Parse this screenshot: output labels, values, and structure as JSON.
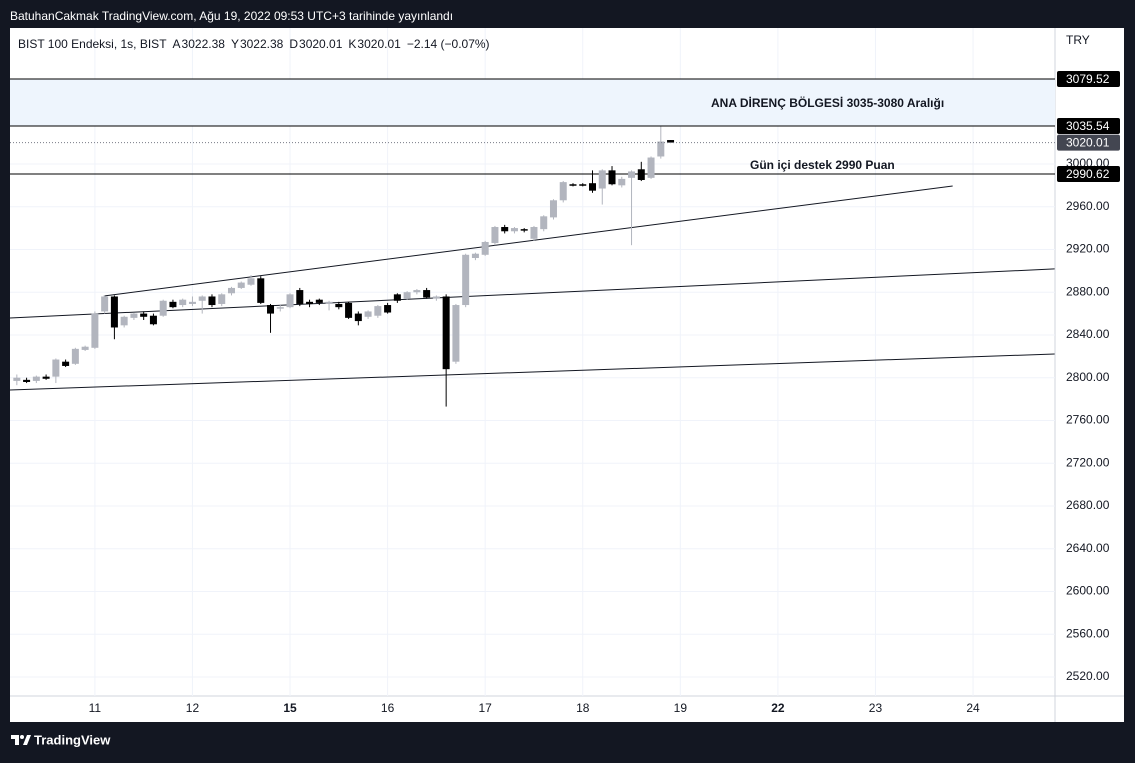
{
  "header": {
    "title": "BatuhanCakmak TradingView.com, Ağu 19, 2022 09:53 UTC+3 tarihinde yayınlandı"
  },
  "footer": {
    "brand": "TradingView"
  },
  "chart_data": {
    "type": "candlestick",
    "symbol": "BIST 100 Endeksi, 1s, BIST",
    "legend_keys": [
      "A",
      "Y",
      "D",
      "K"
    ],
    "change": "−2.14 (−0.07%)",
    "currency": "TRY",
    "up_color": "#b2b5be",
    "down_color": "#000000",
    "grid": true,
    "x": [
      -0.8,
      -0.7,
      -0.6,
      -0.5,
      -0.4,
      -0.3,
      -0.2,
      -0.1,
      0.0,
      0.1,
      0.2,
      0.3,
      0.4,
      0.5,
      0.6,
      0.7,
      0.8,
      0.9,
      1.0,
      1.1,
      1.2,
      1.3,
      1.4,
      1.5,
      1.6,
      1.7,
      1.8,
      1.9,
      2.0,
      2.1,
      2.2,
      2.3,
      2.4,
      2.5,
      2.6,
      2.7,
      2.8,
      2.9,
      3.0,
      3.1,
      3.2,
      3.3,
      3.4,
      3.5,
      3.6,
      3.7,
      3.8,
      3.9,
      4.0,
      4.1,
      4.2,
      4.3,
      4.4,
      4.5,
      4.6,
      4.7,
      4.8,
      4.9,
      5.0,
      5.1,
      5.2,
      5.3,
      5.4,
      5.5,
      5.6,
      5.7,
      5.8,
      5.9
    ],
    "open": [
      2797,
      2798,
      2797,
      2801,
      2801,
      2815,
      2813,
      2826,
      2828,
      2862,
      2876,
      2849,
      2856,
      2860,
      2858,
      2858,
      2871,
      2868,
      2869,
      2872,
      2876,
      2869,
      2879,
      2884,
      2887,
      2893,
      2868,
      2865,
      2866,
      2882,
      2871,
      2873,
      2869,
      2869,
      2870,
      2860,
      2857,
      2858,
      2868,
      2878,
      2874,
      2880,
      2882,
      2874,
      2876,
      2815,
      2868,
      2912,
      2915,
      2926,
      2941,
      2937,
      2939,
      2930,
      2939,
      2950,
      2966,
      2981,
      2981,
      2982,
      2977,
      2994,
      2980,
      2987,
      2995,
      2987,
      3007,
      3022.38
    ],
    "high": [
      2803,
      2800,
      2802,
      2803,
      2818,
      2817,
      2828,
      2830,
      2862,
      2877,
      2877,
      2858,
      2861,
      2862,
      2860,
      2873,
      2873,
      2874,
      2876,
      2877,
      2878,
      2879,
      2885,
      2890,
      2896,
      2895,
      2869,
      2868,
      2879,
      2884,
      2873,
      2874,
      2872,
      2871,
      2871,
      2862,
      2863,
      2868,
      2870,
      2879,
      2881,
      2883,
      2884,
      2877,
      2878,
      2869,
      2916,
      2917,
      2928,
      2942,
      2943,
      2941,
      2940,
      2942,
      2952,
      2967,
      2984,
      2982,
      2982,
      2994,
      2995,
      2998,
      2988,
      2994,
      3002,
      3007,
      3035,
      3022.38
    ],
    "low": [
      2793,
      2795,
      2795,
      2798,
      2795,
      2810,
      2812,
      2825,
      2827,
      2860,
      2836,
      2847,
      2854,
      2854,
      2849,
      2857,
      2865,
      2866,
      2867,
      2860,
      2866,
      2867,
      2877,
      2883,
      2886,
      2869,
      2842,
      2862,
      2865,
      2867,
      2866,
      2868,
      2863,
      2864,
      2855,
      2849,
      2855,
      2856,
      2860,
      2870,
      2873,
      2878,
      2874,
      2872,
      2773,
      2813,
      2866,
      2910,
      2914,
      2924,
      2935,
      2935,
      2936,
      2928,
      2937,
      2948,
      2964,
      2979,
      2979,
      2973,
      2962,
      2980,
      2978,
      2924,
      2984,
      2986,
      3005,
      3020.01
    ],
    "close": [
      2800,
      2796,
      2801,
      2799,
      2817,
      2811,
      2827,
      2829,
      2860,
      2876,
      2847,
      2857,
      2860,
      2857,
      2850,
      2872,
      2866,
      2873,
      2871,
      2876,
      2868,
      2878,
      2884,
      2889,
      2893,
      2870,
      2860,
      2866,
      2878,
      2869,
      2869,
      2870,
      2871,
      2866,
      2856,
      2853,
      2862,
      2867,
      2861,
      2872,
      2880,
      2882,
      2875,
      2876,
      2808,
      2868,
      2915,
      2916,
      2927,
      2941,
      2937,
      2940,
      2938,
      2941,
      2951,
      2966,
      2983,
      2980,
      2980,
      2975,
      2994,
      2981,
      2986,
      2993,
      2985,
      3006,
      3021,
      3020.01
    ],
    "xlim": [
      -0.87,
      9.84
    ],
    "xticks": [
      {
        "value": 0,
        "label": "11"
      },
      {
        "value": 1,
        "label": "12"
      },
      {
        "value": 2,
        "label": "15",
        "bold": true
      },
      {
        "value": 3,
        "label": "16"
      },
      {
        "value": 4,
        "label": "17"
      },
      {
        "value": 5,
        "label": "18"
      },
      {
        "value": 6,
        "label": "19"
      },
      {
        "value": 7,
        "label": "22",
        "bold": true
      },
      {
        "value": 8,
        "label": "23"
      },
      {
        "value": 9,
        "label": "24"
      }
    ],
    "ylim": [
      2502.2,
      3127.2
    ],
    "yticks": [
      {
        "value": 2520,
        "label": "2520.00"
      },
      {
        "value": 2560,
        "label": "2560.00"
      },
      {
        "value": 2600,
        "label": "2600.00"
      },
      {
        "value": 2640,
        "label": "2640.00"
      },
      {
        "value": 2680,
        "label": "2680.00"
      },
      {
        "value": 2720,
        "label": "2720.00"
      },
      {
        "value": 2760,
        "label": "2760.00"
      },
      {
        "value": 2800,
        "label": "2800.00"
      },
      {
        "value": 2840,
        "label": "2840.00"
      },
      {
        "value": 2880,
        "label": "2880.00"
      },
      {
        "value": 2920,
        "label": "2920.00"
      },
      {
        "value": 2960,
        "label": "2960.00"
      },
      {
        "value": 3000,
        "label": "3000.00"
      }
    ],
    "levels": [
      3079.52,
      3035.54,
      2990.62
    ],
    "zone_color": "#eef5fd",
    "trendlines": [
      {
        "x": [
          -0.871,
          9.836
        ],
        "y": [
          2855.9,
          2901.8
        ]
      },
      {
        "x": [
          -0.871,
          9.836
        ],
        "y": [
          2788.5,
          2822.2
        ]
      },
      {
        "x": [
          0.092,
          8.791
        ],
        "y": [
          2876.5,
          2979.4
        ]
      }
    ],
    "annotations": [
      "ANA DİRENÇ BÖLGESİ 3035-3080 Aralığı",
      "Gün içi destek 2990 Puan"
    ]
  }
}
